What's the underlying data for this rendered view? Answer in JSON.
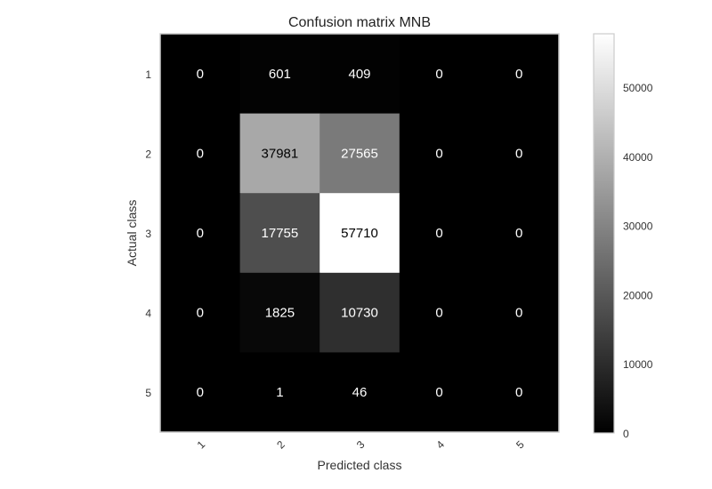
{
  "chart_data": {
    "type": "heatmap",
    "title": "Confusion matrix MNB",
    "xlabel": "Predicted class",
    "ylabel": "Actual class",
    "x_categories": [
      "1",
      "2",
      "3",
      "4",
      "5"
    ],
    "y_categories": [
      "1",
      "2",
      "3",
      "4",
      "5"
    ],
    "values": [
      [
        0,
        601,
        409,
        0,
        0
      ],
      [
        0,
        37981,
        27565,
        0,
        0
      ],
      [
        0,
        17755,
        57710,
        0,
        0
      ],
      [
        0,
        1825,
        10730,
        0,
        0
      ],
      [
        0,
        1,
        46,
        0,
        0
      ]
    ],
    "colormap": "gray",
    "vmin": 0,
    "vmax": 57710,
    "colorbar_ticks": [
      0,
      10000,
      20000,
      30000,
      40000,
      50000
    ],
    "colorbar_tick_labels": [
      "0",
      "10000",
      "20000",
      "30000",
      "40000",
      "50000"
    ],
    "grid": false
  }
}
